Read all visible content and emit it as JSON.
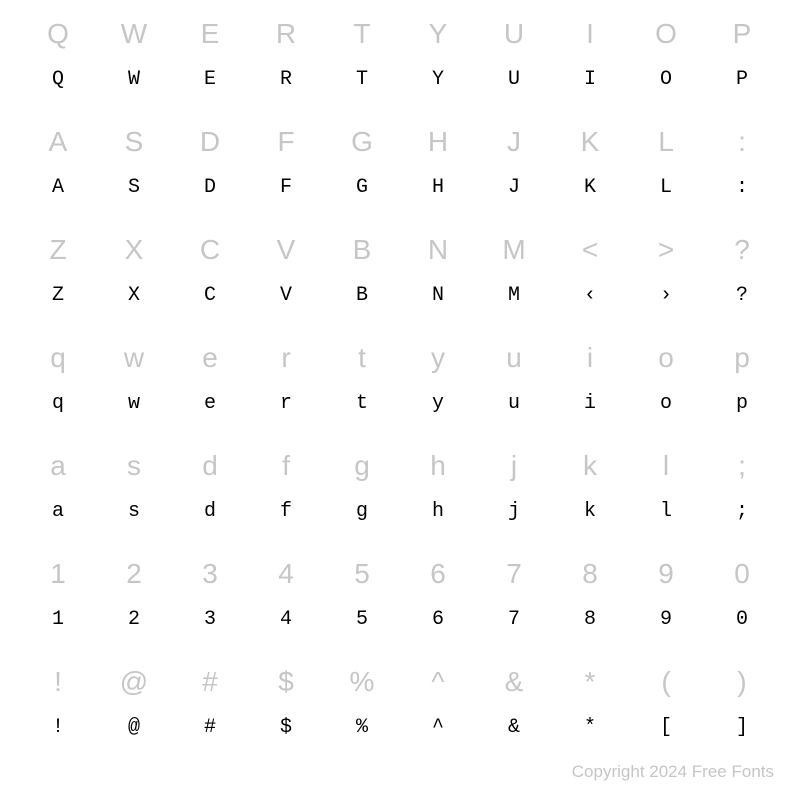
{
  "rows": [
    {
      "type": "ref",
      "cells": [
        "Q",
        "W",
        "E",
        "R",
        "T",
        "Y",
        "U",
        "I",
        "O",
        "P"
      ]
    },
    {
      "type": "glyph",
      "cells": [
        "Q",
        "W",
        "E",
        "R",
        "T",
        "Y",
        "U",
        "I",
        "O",
        "P"
      ]
    },
    {
      "type": "ref",
      "cells": [
        "A",
        "S",
        "D",
        "F",
        "G",
        "H",
        "J",
        "K",
        "L",
        ":"
      ]
    },
    {
      "type": "glyph",
      "cells": [
        "A",
        "S",
        "D",
        "F",
        "G",
        "H",
        "J",
        "K",
        "L",
        ":"
      ]
    },
    {
      "type": "ref",
      "cells": [
        "Z",
        "X",
        "C",
        "V",
        "B",
        "N",
        "M",
        "<",
        ">",
        "?"
      ]
    },
    {
      "type": "glyph",
      "cells": [
        "Z",
        "X",
        "C",
        "V",
        "B",
        "N",
        "M",
        "‹",
        "›",
        "?"
      ]
    },
    {
      "type": "ref",
      "cells": [
        "q",
        "w",
        "e",
        "r",
        "t",
        "y",
        "u",
        "i",
        "o",
        "p"
      ]
    },
    {
      "type": "glyph",
      "cells": [
        "q",
        "w",
        "e",
        "r",
        "t",
        "y",
        "u",
        "i",
        "o",
        "p"
      ]
    },
    {
      "type": "ref",
      "cells": [
        "a",
        "s",
        "d",
        "f",
        "g",
        "h",
        "j",
        "k",
        "l",
        ";"
      ]
    },
    {
      "type": "glyph",
      "cells": [
        "a",
        "s",
        "d",
        "f",
        "g",
        "h",
        "j",
        "k",
        "l",
        ";"
      ]
    },
    {
      "type": "ref",
      "cells": [
        "1",
        "2",
        "3",
        "4",
        "5",
        "6",
        "7",
        "8",
        "9",
        "0"
      ]
    },
    {
      "type": "glyph",
      "cells": [
        "1",
        "2",
        "3",
        "4",
        "5",
        "6",
        "7",
        "8",
        "9",
        "0"
      ]
    },
    {
      "type": "ref",
      "cells": [
        "!",
        "@",
        "#",
        "$",
        "%",
        "^",
        "&",
        "*",
        "(",
        ")"
      ]
    },
    {
      "type": "glyph",
      "cells": [
        "!",
        "@",
        "#",
        "$",
        "%",
        "^",
        "&",
        "*",
        "[",
        "]"
      ]
    }
  ],
  "copyright": "Copyright 2024 Free Fonts",
  "colors": {
    "ref_text": "#c6c6c6",
    "glyph_text": "#000000",
    "background": "#ffffff"
  },
  "typography": {
    "ref_fontsize": 28,
    "glyph_fontsize": 20,
    "copyright_fontsize": 17
  }
}
